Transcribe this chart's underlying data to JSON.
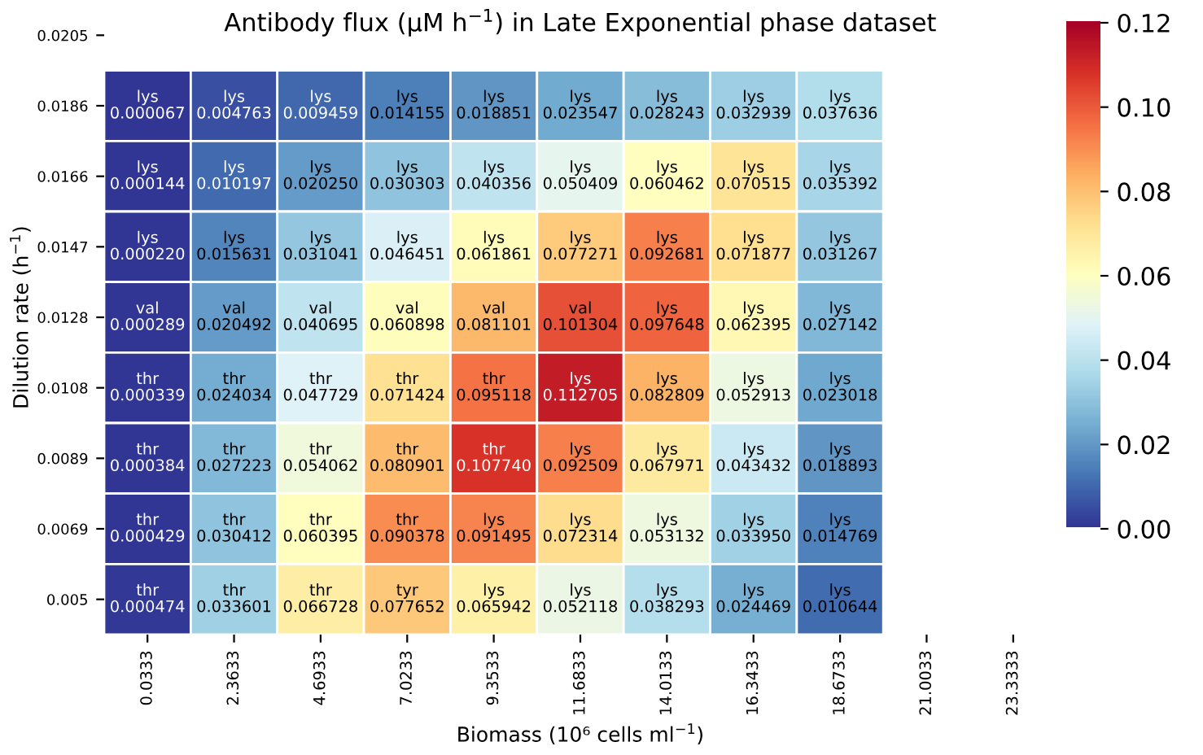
{
  "chart_data": {
    "type": "heatmap",
    "title": "Antibody flux (μM h$^{−1}$) in Late Exponential phase dataset",
    "xlabel": "Biomass (10⁶ cells ml$^{−1}$)",
    "ylabel": "Dilution rate (h$^{−1}$)",
    "categories": [
      "0.0333",
      "2.3633",
      "4.6933",
      "7.0233",
      "9.3533",
      "11.6833",
      "14.0133",
      "16.3433",
      "18.6733",
      "21.0033",
      "23.3333"
    ],
    "y_categories": [
      "0.0205",
      "0.0186",
      "0.0166",
      "0.0147",
      "0.0128",
      "0.0108",
      "0.0089",
      "0.0069",
      "0.005"
    ],
    "cells": [
      [
        null,
        null,
        null,
        null,
        null,
        null,
        null,
        null,
        null,
        null,
        null
      ],
      [
        6.7e-05,
        0.004763,
        0.009459,
        0.014155,
        0.018851,
        0.023547,
        0.028243,
        0.032939,
        0.037636,
        null,
        null
      ],
      [
        0.000144,
        0.010197,
        0.02025,
        0.030303,
        0.040356,
        0.050409,
        0.060462,
        0.070515,
        0.035392,
        null,
        null
      ],
      [
        0.00022,
        0.015631,
        0.031041,
        0.046451,
        0.061861,
        0.077271,
        0.092681,
        0.071877,
        0.031267,
        null,
        null
      ],
      [
        0.000289,
        0.020492,
        0.040695,
        0.060898,
        0.081101,
        0.101304,
        0.097648,
        0.062395,
        0.027142,
        null,
        null
      ],
      [
        0.000339,
        0.024034,
        0.047729,
        0.071424,
        0.095118,
        0.112705,
        0.082809,
        0.052913,
        0.023018,
        null,
        null
      ],
      [
        0.000384,
        0.027223,
        0.054062,
        0.080901,
        0.10774,
        0.092509,
        0.067971,
        0.043432,
        0.018893,
        null,
        null
      ],
      [
        0.000429,
        0.030412,
        0.060395,
        0.090378,
        0.091495,
        0.072314,
        0.053132,
        0.03395,
        0.014769,
        null,
        null
      ],
      [
        0.000474,
        0.033601,
        0.066728,
        0.077652,
        0.065942,
        0.052118,
        0.038293,
        0.024469,
        0.010644,
        null,
        null
      ]
    ],
    "cell_labels": [
      [
        null,
        null,
        null,
        null,
        null,
        null,
        null,
        null,
        null,
        null,
        null
      ],
      [
        "lys\n0.000067",
        "lys\n0.004763",
        "lys\n0.009459",
        "lys\n0.014155",
        "lys\n0.018851",
        "lys\n0.023547",
        "lys\n0.028243",
        "lys\n0.032939",
        "lys\n0.037636",
        null,
        null
      ],
      [
        "lys\n0.000144",
        "lys\n0.010197",
        "lys\n0.020250",
        "lys\n0.030303",
        "lys\n0.040356",
        "lys\n0.050409",
        "lys\n0.060462",
        "lys\n0.070515",
        "lys\n0.035392",
        null,
        null
      ],
      [
        "lys\n0.000220",
        "lys\n0.015631",
        "lys\n0.031041",
        "lys\n0.046451",
        "lys\n0.061861",
        "lys\n0.077271",
        "lys\n0.092681",
        "lys\n0.071877",
        "lys\n0.031267",
        null,
        null
      ],
      [
        "val\n0.000289",
        "val\n0.020492",
        "val\n0.040695",
        "val\n0.060898",
        "val\n0.081101",
        "val\n0.101304",
        "lys\n0.097648",
        "lys\n0.062395",
        "lys\n0.027142",
        null,
        null
      ],
      [
        "thr\n0.000339",
        "thr\n0.024034",
        "thr\n0.047729",
        "thr\n0.071424",
        "thr\n0.095118",
        "lys\n0.112705",
        "lys\n0.082809",
        "lys\n0.052913",
        "lys\n0.023018",
        null,
        null
      ],
      [
        "thr\n0.000384",
        "thr\n0.027223",
        "thr\n0.054062",
        "thr\n0.080901",
        "thr\n0.107740",
        "lys\n0.092509",
        "lys\n0.067971",
        "lys\n0.043432",
        "lys\n0.018893",
        null,
        null
      ],
      [
        "thr\n0.000429",
        "thr\n0.030412",
        "thr\n0.060395",
        "thr\n0.090378",
        "lys\n0.091495",
        "lys\n0.072314",
        "lys\n0.053132",
        "lys\n0.033950",
        "lys\n0.014769",
        null,
        null
      ],
      [
        "thr\n0.000474",
        "thr\n0.033601",
        "thr\n0.066728",
        "tyr\n0.077652",
        "lys\n0.065942",
        "lys\n0.052118",
        "lys\n0.038293",
        "lys\n0.024469",
        "lys\n0.010644",
        null,
        null
      ]
    ],
    "clim": [
      0,
      0.12
    ],
    "cticks": [
      {
        "value": 0,
        "label": "0.00"
      },
      {
        "value": 0.02,
        "label": "0.02"
      },
      {
        "value": 0.04,
        "label": "0.04"
      },
      {
        "value": 0.06,
        "label": "0.06"
      },
      {
        "value": 0.08,
        "label": "0.08"
      },
      {
        "value": 0.1,
        "label": "0.10"
      },
      {
        "value": 0.12,
        "label": "0.12"
      }
    ]
  }
}
